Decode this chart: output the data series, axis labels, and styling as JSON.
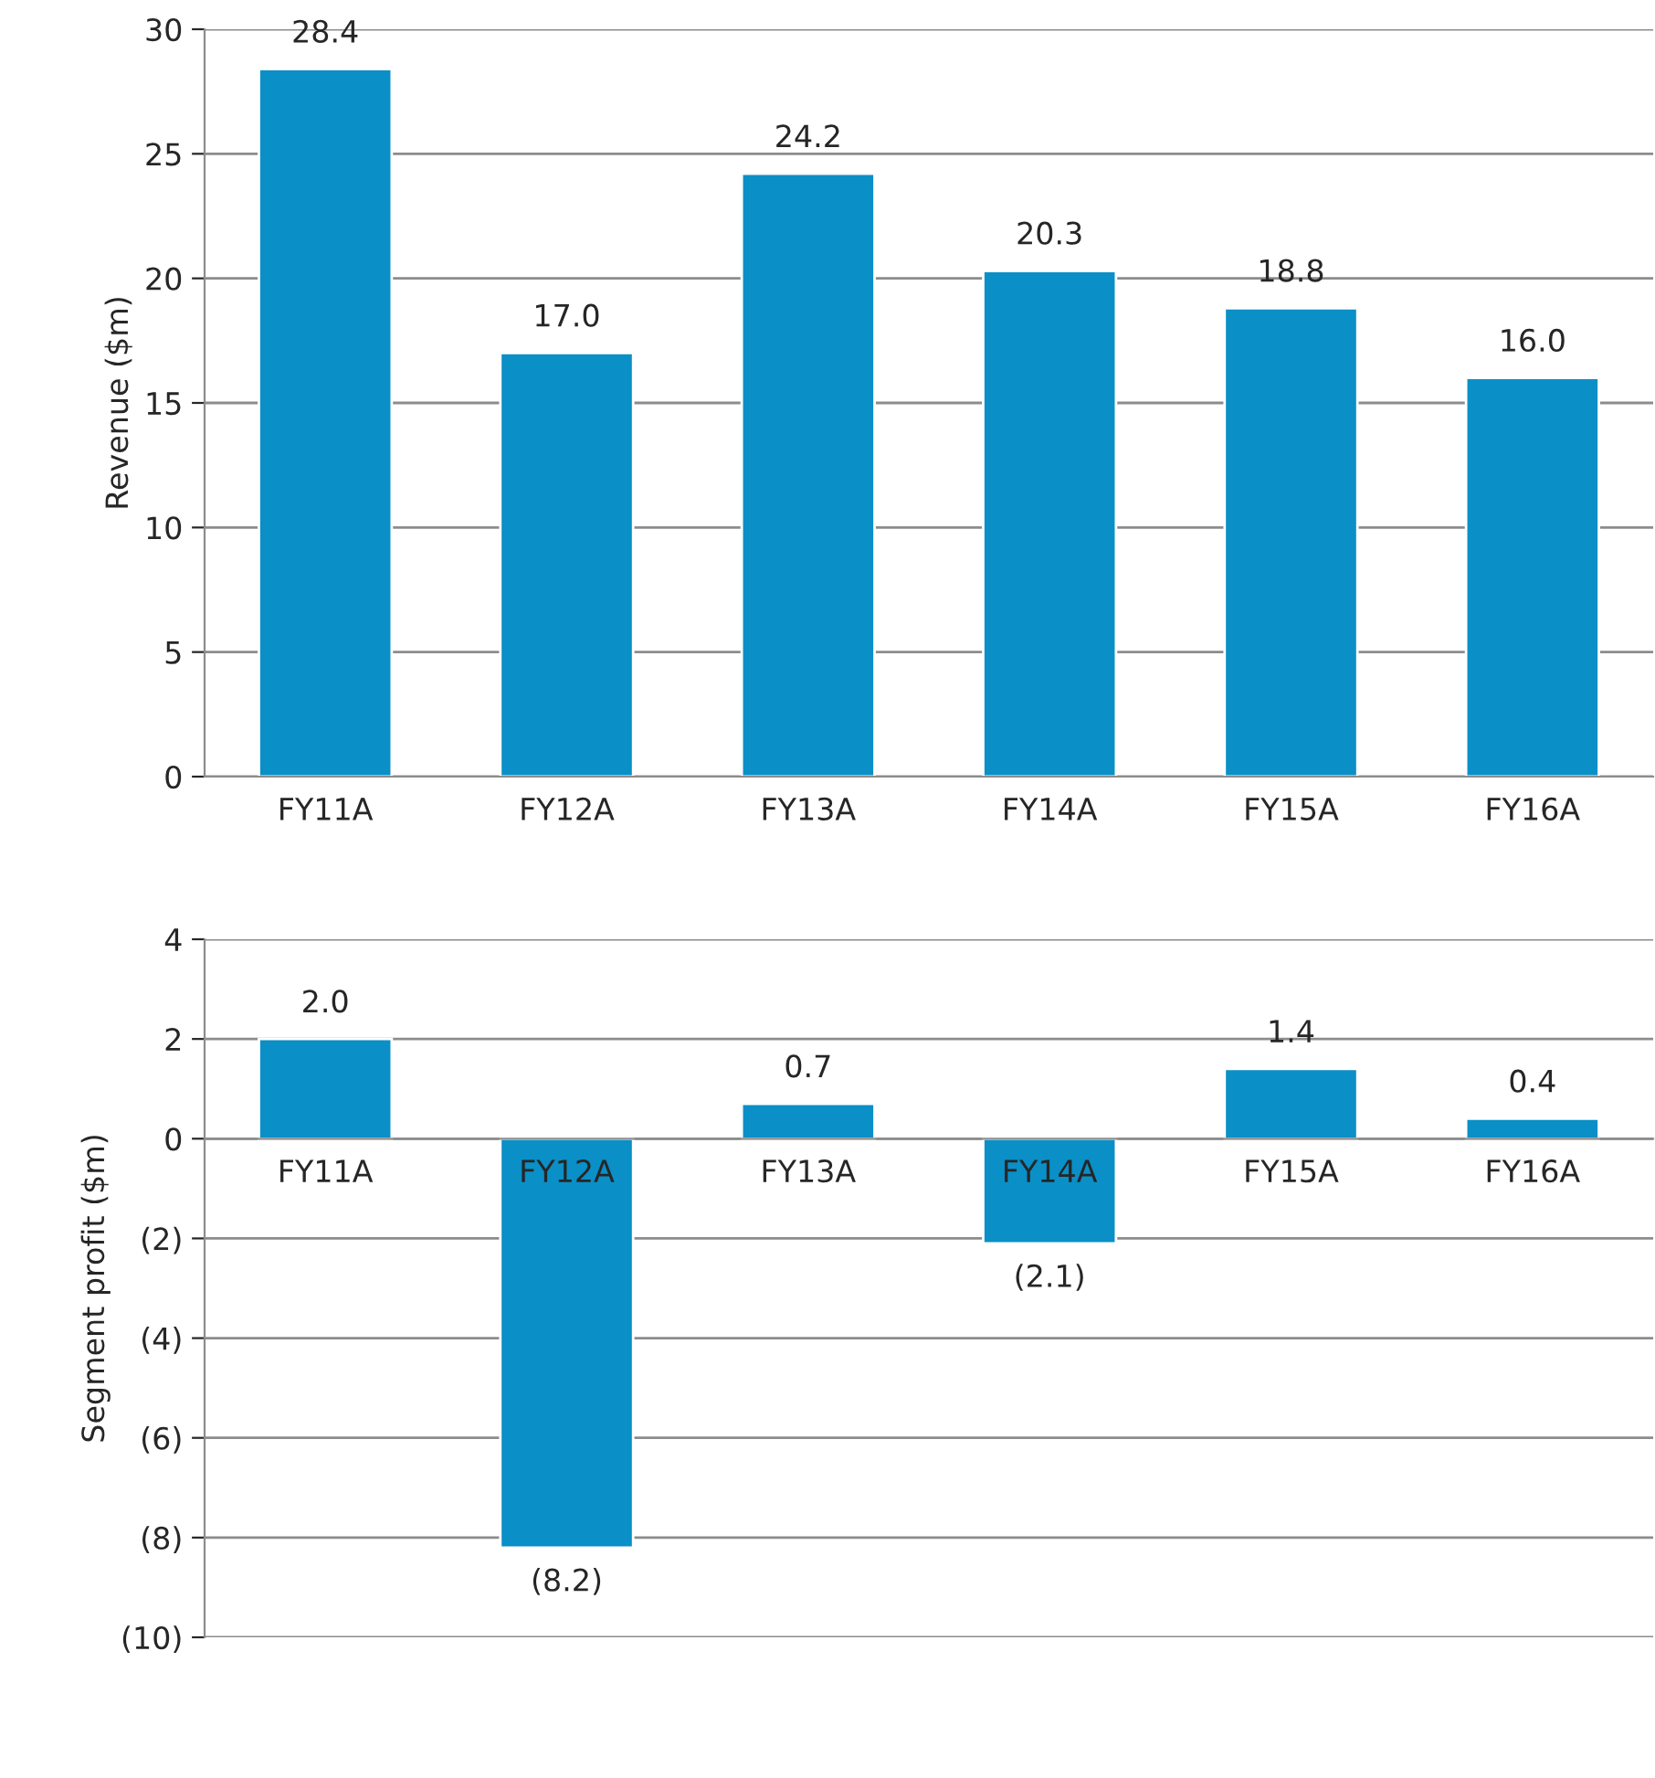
{
  "chart_data": [
    {
      "type": "bar",
      "ylabel": "Revenue ($m)",
      "categories": [
        "FY11A",
        "FY12A",
        "FY13A",
        "FY14A",
        "FY15A",
        "FY16A"
      ],
      "values": [
        28.4,
        17.0,
        24.2,
        20.3,
        18.8,
        16.0
      ],
      "color": "#0a8fc7",
      "value_labels": [
        "28.4",
        "17.0",
        "24.2",
        "20.3",
        "18.8",
        "16.0"
      ],
      "ylim": [
        0,
        30
      ],
      "yticks": [
        0,
        5,
        10,
        15,
        20,
        25,
        30
      ],
      "grid": "y"
    },
    {
      "type": "bar",
      "ylabel": "Segment profit ($m)",
      "categories": [
        "FY11A",
        "FY12A",
        "FY13A",
        "FY14A",
        "FY15A",
        "FY16A"
      ],
      "values": [
        2.0,
        -8.2,
        0.7,
        -2.1,
        1.4,
        0.4
      ],
      "color": "#0a8fc7",
      "value_labels": [
        "2.0",
        "(8.2)",
        "0.7",
        "(2.1)",
        "1.4",
        "0.4"
      ],
      "ylim": [
        -10,
        4
      ],
      "yticks": [
        {
          "value": -10,
          "label": "(10)"
        },
        {
          "value": -8,
          "label": "(8)"
        },
        {
          "value": -6,
          "label": "(6)"
        },
        {
          "value": -4,
          "label": "(4)"
        },
        {
          "value": -2,
          "label": "(2)"
        },
        0,
        2,
        4
      ],
      "grid": "y"
    }
  ]
}
